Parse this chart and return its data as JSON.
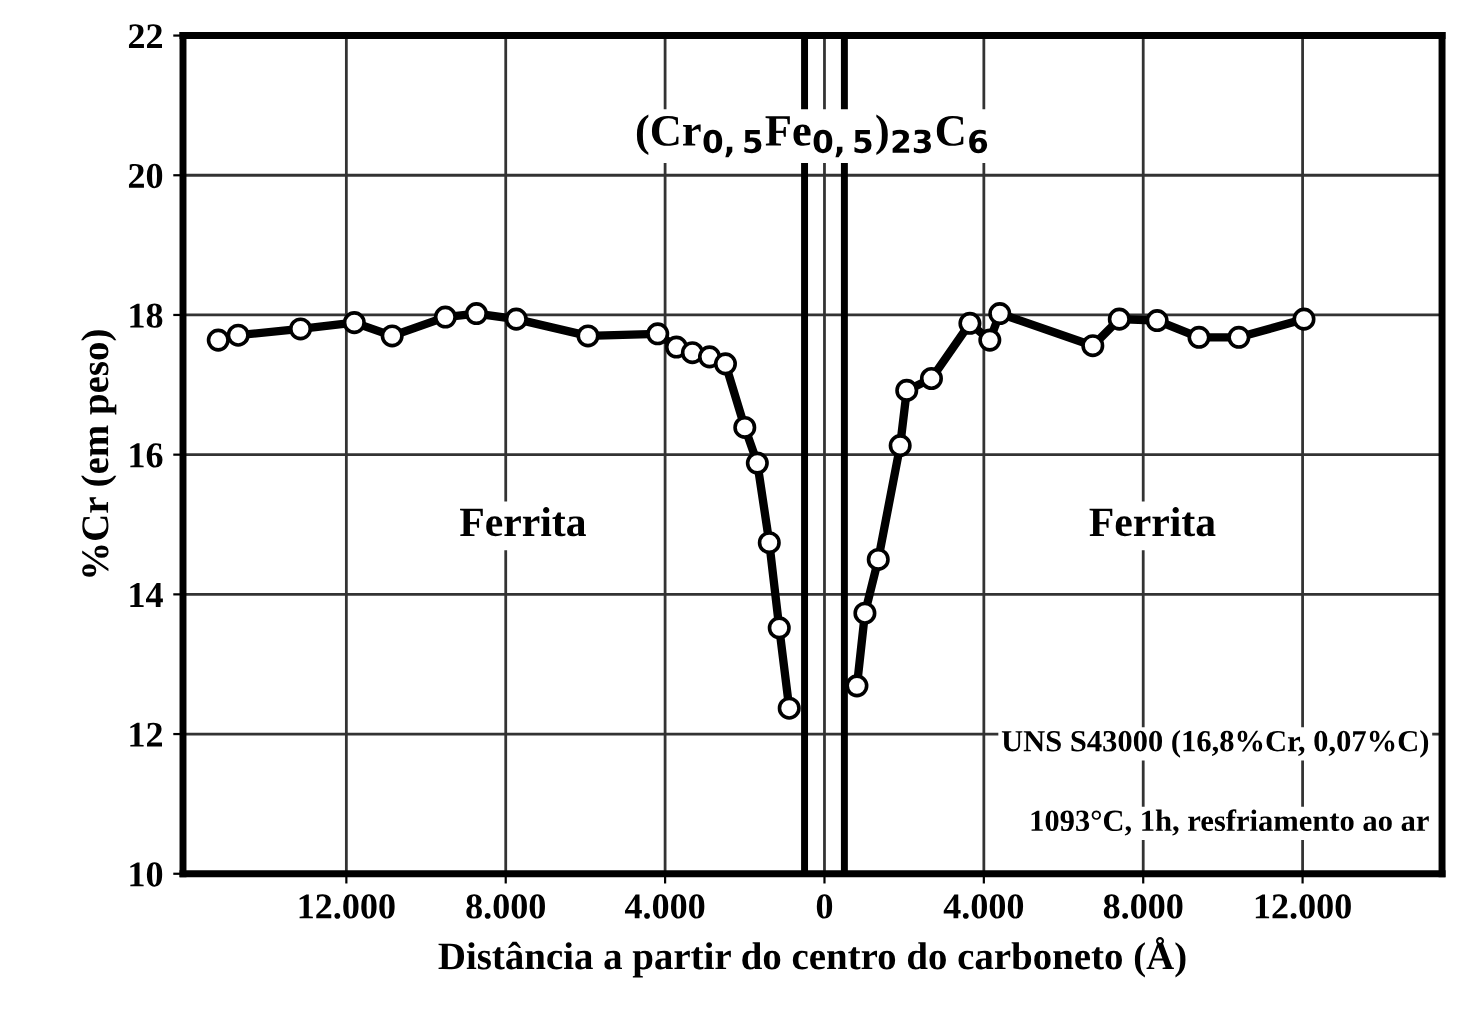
{
  "chart_data": {
    "type": "line",
    "xlabel": "Distância a partir do centro do carboneto (Å)",
    "ylabel": "%Cr (em peso)",
    "series": [
      {
        "color": "#000000",
        "x": [
          -15215,
          -14715,
          -13150,
          -11800,
          -10850,
          -9515,
          -8735,
          -7735,
          -5935,
          -4185,
          -3715,
          -3315,
          -2885,
          -2485,
          -2000,
          -1685,
          -1385,
          -1135,
          -885
        ],
        "values": [
          17.64,
          17.71,
          17.8,
          17.89,
          17.7,
          17.97,
          18.02,
          17.94,
          17.7,
          17.73,
          17.54,
          17.46,
          17.4,
          17.3,
          16.39,
          15.88,
          14.74,
          13.52,
          12.37
        ]
      },
      {
        "color": "#000000",
        "x": [
          815,
          1015,
          1350,
          1900,
          2065,
          2685,
          3650,
          4150,
          4400,
          6735,
          7400,
          8350,
          9400,
          10400,
          12035
        ],
        "values": [
          12.69,
          13.73,
          14.5,
          16.13,
          16.92,
          17.09,
          17.88,
          17.64,
          18.02,
          17.56,
          17.94,
          17.92,
          17.68,
          17.68,
          17.94
        ]
      }
    ],
    "xlim": [
      -16100,
      15500
    ],
    "ylim": [
      10,
      22
    ],
    "xticks": [
      {
        "value": -12000,
        "label": "12.000"
      },
      {
        "value": -8000,
        "label": "8.000"
      },
      {
        "value": -4000,
        "label": "4.000"
      },
      0,
      {
        "value": 4000,
        "label": "4.000"
      },
      {
        "value": 8000,
        "label": "8.000"
      },
      {
        "value": 12000,
        "label": "12.000"
      }
    ],
    "yticks": [
      10,
      12,
      14,
      16,
      18,
      20,
      22
    ],
    "ref_lines": [
      {
        "axis": "x",
        "value": -500,
        "color": "#000000"
      },
      {
        "axis": "x",
        "value": 500,
        "color": "#000000"
      }
    ],
    "annotations": [
      "Ferrita",
      "Ferrita",
      "(Cr$_{0,5}$Fe$_{0,5}$)$_{23}$C$_{6}$",
      "UNS S43000 (16,8%Cr, 0,07%C)",
      "1093°C, 1h, resfriamento ao ar"
    ],
    "grid": true,
    "marker": "circle",
    "line_style": "solid",
    "legend": false
  }
}
